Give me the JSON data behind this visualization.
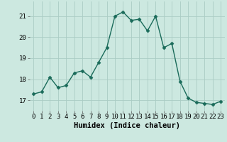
{
  "xlabel": "Humidex (Indice chaleur)",
  "x_values": [
    0,
    1,
    2,
    3,
    4,
    5,
    6,
    7,
    8,
    9,
    10,
    11,
    12,
    13,
    14,
    15,
    16,
    17,
    18,
    19,
    20,
    21,
    22,
    23
  ],
  "y_values": [
    17.3,
    17.4,
    18.1,
    17.6,
    17.7,
    18.3,
    18.4,
    18.1,
    18.8,
    19.5,
    21.0,
    21.2,
    20.8,
    20.85,
    20.3,
    21.0,
    19.5,
    19.7,
    17.9,
    17.1,
    16.9,
    16.85,
    16.8,
    16.95
  ],
  "line_color": "#1a6b5a",
  "marker": "D",
  "marker_size": 2.5,
  "line_width": 1.0,
  "bg_color": "#cce8e0",
  "grid_color": "#aaccc4",
  "ylim": [
    16.5,
    21.7
  ],
  "yticks": [
    17,
    18,
    19,
    20,
    21
  ],
  "xticks": [
    0,
    1,
    2,
    3,
    4,
    5,
    6,
    7,
    8,
    9,
    10,
    11,
    12,
    13,
    14,
    15,
    16,
    17,
    18,
    19,
    20,
    21,
    22,
    23
  ],
  "xlabel_fontsize": 7.5,
  "tick_fontsize": 6.5
}
